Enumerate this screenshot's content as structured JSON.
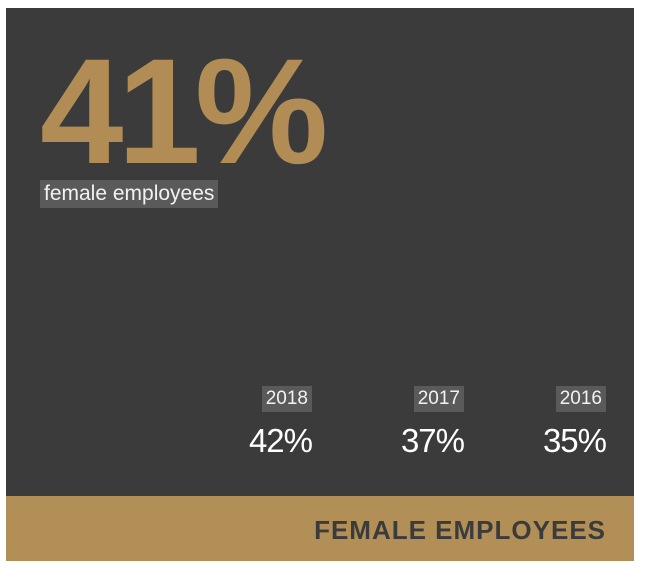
{
  "headline": {
    "value": "41%",
    "label": "female employees"
  },
  "years": [
    {
      "year": "2018",
      "value": "42%"
    },
    {
      "year": "2017",
      "value": "37%"
    },
    {
      "year": "2016",
      "value": "35%"
    }
  ],
  "footer": {
    "title": "FEMALE EMPLOYEES"
  },
  "colors": {
    "background": "#3c3b3b",
    "accent": "#b18d55",
    "label_bg": "#5b5a5a",
    "text": "#ffffff"
  }
}
